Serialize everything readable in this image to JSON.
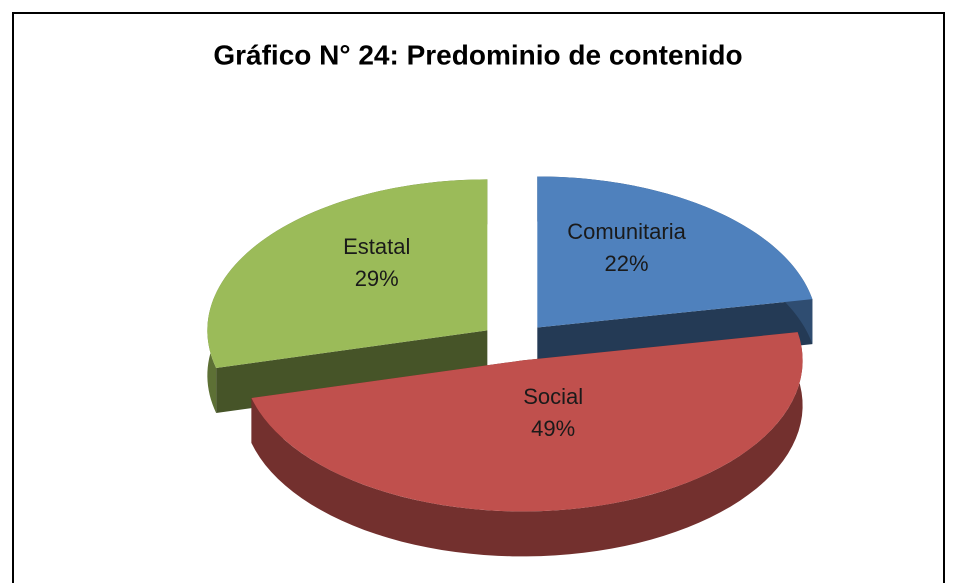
{
  "chart_data": {
    "type": "pie3d",
    "title": "Gráfico N° 24: Predominio de contenido",
    "categories": [
      "Comunitaria",
      "Social",
      "Estatal"
    ],
    "values": [
      22,
      49,
      29
    ],
    "value_labels": [
      "22%",
      "49%",
      "29%"
    ],
    "colors": [
      "#4f81bd",
      "#c0504d",
      "#9bbb59"
    ]
  }
}
